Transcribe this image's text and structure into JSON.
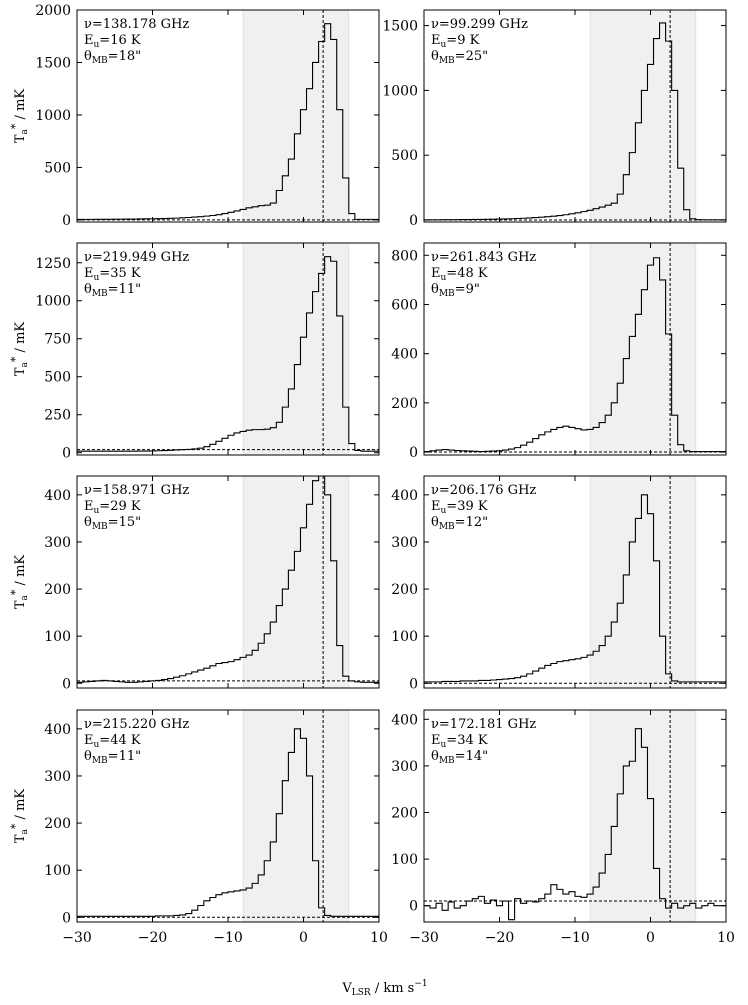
{
  "figure": {
    "xlabel_main": "V",
    "xlabel_sub": "LSR",
    "xlabel_rest": " / km s",
    "xlabel_sup": "−1"
  },
  "chart_data": [
    {
      "type": "line",
      "step": true,
      "freq": "ν=138.178 GHz",
      "eu": "E_u=16 K",
      "theta": "θ_MB=18\"",
      "ylabel": "T_a* / mK",
      "xlim": [
        -30,
        10
      ],
      "ylim": [
        -20,
        2000
      ],
      "yticks": [
        0,
        500,
        1000,
        1500,
        2000
      ],
      "xticks": [
        -30,
        -20,
        -10,
        0,
        10
      ],
      "shade": [
        -8,
        6
      ],
      "vline": 2.6,
      "hline": 0,
      "x_start": -30,
      "bin_width": 0.8,
      "values": [
        5,
        5,
        5,
        6,
        6,
        6,
        7,
        7,
        8,
        8,
        9,
        10,
        11,
        12,
        13,
        15,
        17,
        20,
        23,
        27,
        31,
        36,
        42,
        50,
        60,
        72,
        85,
        100,
        115,
        125,
        135,
        140,
        160,
        280,
        420,
        580,
        820,
        1050,
        1250,
        1500,
        1700,
        1870,
        1720,
        1050,
        400,
        60,
        5,
        5,
        5,
        5
      ]
    },
    {
      "type": "line",
      "step": true,
      "freq": "ν=99.299 GHz",
      "eu": "E_u=9 K",
      "theta": "θ_MB=25\"",
      "ylabel": "",
      "xlim": [
        -30,
        10
      ],
      "ylim": [
        -15,
        1620
      ],
      "yticks": [
        0,
        500,
        1000,
        1500
      ],
      "xticks": [
        -30,
        -20,
        -10,
        0,
        10
      ],
      "shade": [
        -8,
        6
      ],
      "vline": 2.6,
      "hline": 0,
      "x_start": -30,
      "bin_width": 0.8,
      "values": [
        2,
        2,
        2,
        3,
        3,
        3,
        4,
        4,
        5,
        5,
        6,
        7,
        8,
        9,
        10,
        12,
        14,
        16,
        19,
        22,
        26,
        30,
        35,
        41,
        48,
        56,
        65,
        75,
        88,
        100,
        115,
        130,
        200,
        350,
        520,
        750,
        1000,
        1200,
        1400,
        1520,
        1380,
        1000,
        400,
        80,
        10,
        3,
        2,
        2,
        2,
        2
      ]
    },
    {
      "type": "line",
      "step": true,
      "freq": "ν=219.949 GHz",
      "eu": "E_u=35 K",
      "theta": "θ_MB=11\"",
      "ylabel": "T_a* / mK",
      "xlim": [
        -30,
        10
      ],
      "ylim": [
        -15,
        1380
      ],
      "yticks": [
        0,
        250,
        500,
        750,
        1000,
        1250
      ],
      "xticks": [
        -30,
        -20,
        -10,
        0,
        10
      ],
      "shade": [
        -8,
        6
      ],
      "vline": 2.6,
      "hline": 20,
      "x_start": -30,
      "bin_width": 0.8,
      "values": [
        10,
        10,
        10,
        10,
        10,
        10,
        10,
        10,
        10,
        10,
        11,
        11,
        12,
        13,
        14,
        16,
        18,
        20,
        22,
        25,
        30,
        40,
        55,
        75,
        95,
        115,
        130,
        140,
        148,
        152,
        152,
        155,
        165,
        200,
        300,
        420,
        580,
        760,
        920,
        1060,
        1180,
        1290,
        1260,
        900,
        300,
        60,
        15,
        10,
        10,
        10
      ]
    },
    {
      "type": "line",
      "step": true,
      "freq": "ν=261.843 GHz",
      "eu": "E_u=48 K",
      "theta": "θ_MB=9\"",
      "ylabel": "",
      "xlim": [
        -30,
        10
      ],
      "ylim": [
        -12,
        850
      ],
      "yticks": [
        0,
        200,
        400,
        600,
        800
      ],
      "xticks": [
        -30,
        -20,
        -10,
        0,
        10
      ],
      "shade": [
        -8,
        6
      ],
      "vline": 2.6,
      "hline": 0,
      "x_start": -30,
      "bin_width": 0.8,
      "values": [
        2,
        5,
        8,
        10,
        8,
        6,
        5,
        4,
        3,
        2,
        3,
        4,
        5,
        8,
        12,
        18,
        28,
        40,
        55,
        70,
        82,
        92,
        100,
        105,
        100,
        95,
        90,
        92,
        100,
        120,
        150,
        200,
        280,
        380,
        470,
        560,
        660,
        760,
        790,
        700,
        480,
        150,
        30,
        5,
        2,
        2,
        2,
        2,
        2,
        2
      ]
    },
    {
      "type": "line",
      "step": true,
      "freq": "ν=158.971 GHz",
      "eu": "E_u=29 K",
      "theta": "θ_MB=15\"",
      "ylabel": "T_a* / mK",
      "xlim": [
        -30,
        10
      ],
      "ylim": [
        -10,
        440
      ],
      "yticks": [
        0,
        100,
        200,
        300,
        400
      ],
      "xticks": [
        -30,
        -20,
        -10,
        0,
        10
      ],
      "shade": [
        -8,
        6
      ],
      "vline": 2.6,
      "hline": 5,
      "x_start": -30,
      "bin_width": 0.8,
      "values": [
        2,
        3,
        4,
        5,
        6,
        5,
        4,
        3,
        2,
        2,
        3,
        4,
        5,
        6,
        8,
        10,
        13,
        16,
        20,
        24,
        28,
        32,
        37,
        42,
        44,
        46,
        50,
        55,
        60,
        70,
        85,
        105,
        130,
        165,
        200,
        240,
        280,
        330,
        380,
        430,
        450,
        400,
        260,
        80,
        15,
        5,
        3,
        2,
        2,
        2
      ]
    },
    {
      "type": "line",
      "step": true,
      "freq": "ν=206.176 GHz",
      "eu": "E_u=39 K",
      "theta": "θ_MB=12\"",
      "ylabel": "",
      "xlim": [
        -30,
        10
      ],
      "ylim": [
        -10,
        440
      ],
      "yticks": [
        0,
        100,
        200,
        300,
        400
      ],
      "xticks": [
        -30,
        -20,
        -10,
        0,
        10
      ],
      "shade": [
        -8,
        6
      ],
      "vline": 2.6,
      "hline": 0,
      "x_start": -30,
      "bin_width": 0.8,
      "values": [
        3,
        3,
        3,
        4,
        4,
        4,
        5,
        5,
        5,
        6,
        6,
        7,
        8,
        9,
        10,
        12,
        15,
        20,
        26,
        32,
        38,
        42,
        46,
        48,
        50,
        52,
        55,
        60,
        68,
        80,
        100,
        130,
        170,
        230,
        300,
        350,
        400,
        360,
        260,
        100,
        20,
        5,
        3,
        3,
        3,
        3,
        3,
        3,
        3,
        3
      ]
    },
    {
      "type": "line",
      "step": true,
      "freq": "ν=215.220 GHz",
      "eu": "E_u=44 K",
      "theta": "θ_MB=11\"",
      "ylabel": "T_a* / mK",
      "xlim": [
        -30,
        10
      ],
      "ylim": [
        -10,
        440
      ],
      "yticks": [
        0,
        100,
        200,
        300,
        400
      ],
      "xticks": [
        -30,
        -20,
        -10,
        0,
        10
      ],
      "shade": [
        -8,
        6
      ],
      "vline": 2.6,
      "hline": 0,
      "x_start": -30,
      "bin_width": 0.8,
      "values": [
        2,
        2,
        2,
        2,
        2,
        2,
        2,
        2,
        2,
        2,
        2,
        2,
        2,
        3,
        3,
        3,
        4,
        5,
        8,
        15,
        25,
        35,
        42,
        48,
        52,
        54,
        56,
        58,
        62,
        72,
        90,
        120,
        160,
        220,
        290,
        350,
        400,
        380,
        300,
        120,
        20,
        4,
        2,
        2,
        2,
        2,
        2,
        2,
        2,
        2
      ]
    },
    {
      "type": "line",
      "step": true,
      "freq": "ν=172.181 GHz",
      "eu": "E_u=34 K",
      "theta": "θ_MB=14\"",
      "ylabel": "",
      "xlim": [
        -30,
        10
      ],
      "ylim": [
        -35,
        420
      ],
      "yticks": [
        0,
        100,
        200,
        300,
        400
      ],
      "xticks": [
        -30,
        -20,
        -10,
        0,
        10
      ],
      "shade": [
        -8,
        6
      ],
      "vline": 2.6,
      "hline": 10,
      "x_start": -30,
      "bin_width": 0.8,
      "values": [
        0,
        -5,
        5,
        -10,
        8,
        -5,
        0,
        10,
        15,
        20,
        5,
        12,
        0,
        10,
        -30,
        15,
        5,
        10,
        8,
        15,
        25,
        45,
        35,
        25,
        30,
        20,
        18,
        25,
        40,
        70,
        110,
        170,
        240,
        300,
        310,
        380,
        340,
        230,
        80,
        15,
        -5,
        5,
        -5,
        0,
        5,
        -5,
        0,
        5,
        0,
        0
      ]
    }
  ]
}
